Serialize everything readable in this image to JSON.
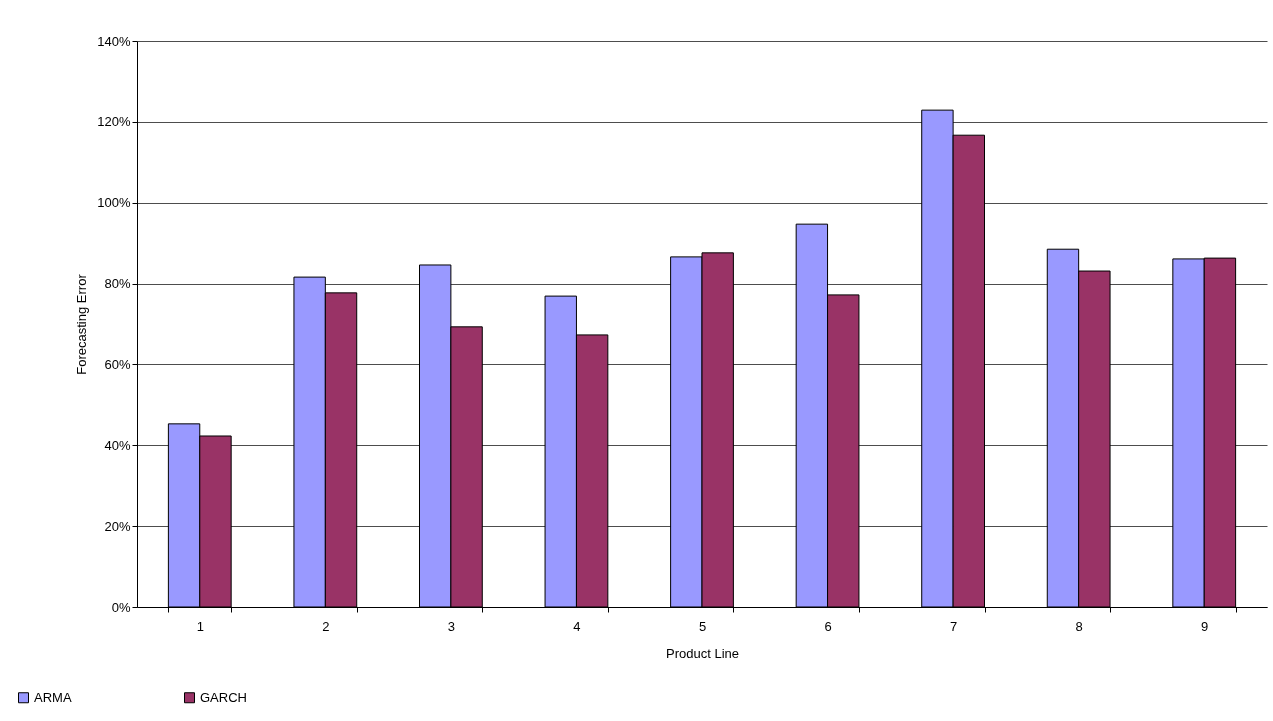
{
  "chart_data": {
    "type": "bar",
    "xlabel": "Product Line",
    "ylabel": "Forecasting Error",
    "categories": [
      "1",
      "2",
      "3",
      "4",
      "5",
      "6",
      "7",
      "8",
      "9"
    ],
    "series": [
      {
        "name": "ARMA",
        "color": "#9999ff",
        "values": [
          45.3,
          81.6,
          84.6,
          76.9,
          86.6,
          94.7,
          122.9,
          88.5,
          86.1
        ]
      },
      {
        "name": "GARCH",
        "color": "#993366",
        "values": [
          42.3,
          77.7,
          69.3,
          67.3,
          87.6,
          77.2,
          116.7,
          83.1,
          86.3
        ]
      }
    ],
    "ylim": [
      0,
      140
    ],
    "yticks": [
      {
        "value": 0,
        "label": "0%"
      },
      {
        "value": 20,
        "label": "20%"
      },
      {
        "value": 40,
        "label": "40%"
      },
      {
        "value": 60,
        "label": "60%"
      },
      {
        "value": 80,
        "label": "80%"
      },
      {
        "value": 100,
        "label": "100%"
      },
      {
        "value": 120,
        "label": "120%"
      },
      {
        "value": 140,
        "label": "140%"
      }
    ],
    "grid": "y",
    "legend": "bottom left"
  }
}
